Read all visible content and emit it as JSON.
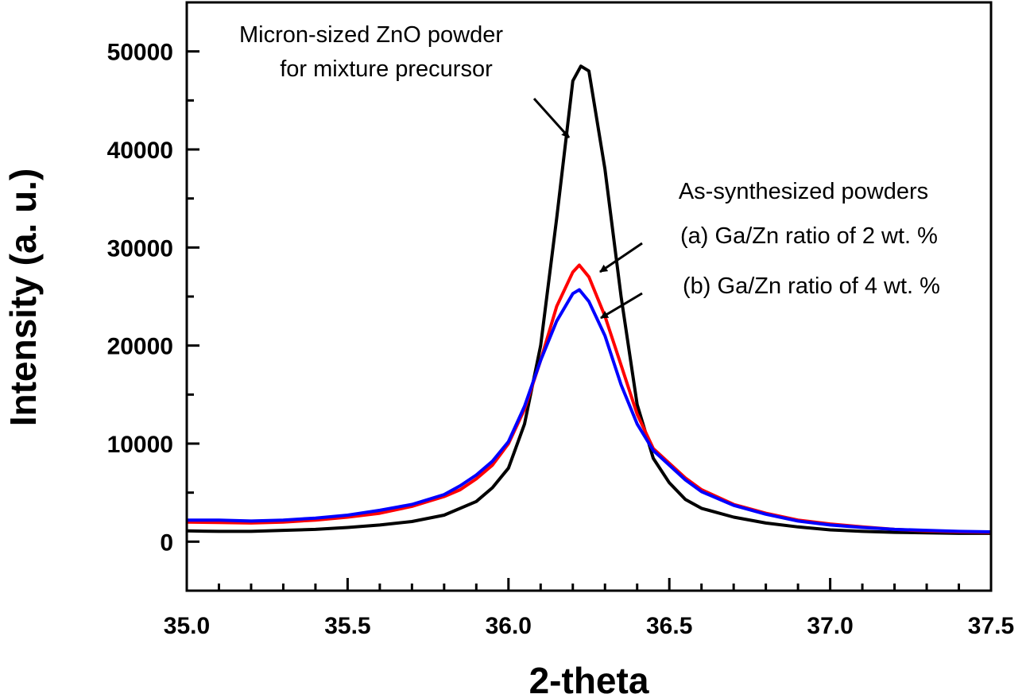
{
  "chart_data": {
    "type": "line",
    "xlabel": "2-theta",
    "ylabel": "Intensity (a. u.)",
    "xlim": [
      35.0,
      37.5
    ],
    "ylim": [
      -5000,
      55000
    ],
    "x_ticks": [
      35.0,
      35.5,
      36.0,
      36.5,
      37.0,
      37.5
    ],
    "x_tick_labels": [
      "35.0",
      "35.5",
      "36.0",
      "36.5",
      "37.0",
      "37.5"
    ],
    "y_ticks": [
      0,
      10000,
      20000,
      30000,
      40000,
      50000
    ],
    "y_tick_labels": [
      "0",
      "10000",
      "20000",
      "30000",
      "40000",
      "50000"
    ],
    "grid": false,
    "series": [
      {
        "color": "#000000",
        "x": [
          35.0,
          35.1,
          35.2,
          35.3,
          35.4,
          35.5,
          35.6,
          35.7,
          35.8,
          35.9,
          35.95,
          36.0,
          36.05,
          36.1,
          36.15,
          36.2,
          36.225,
          36.25,
          36.3,
          36.35,
          36.4,
          36.45,
          36.5,
          36.55,
          36.6,
          36.7,
          36.8,
          36.9,
          37.0,
          37.1,
          37.2,
          37.3,
          37.4,
          37.5
        ],
        "y": [
          1100,
          1050,
          1050,
          1150,
          1250,
          1450,
          1700,
          2050,
          2700,
          4100,
          5500,
          7500,
          12000,
          20000,
          33000,
          47000,
          48500,
          48000,
          38000,
          25000,
          14000,
          8500,
          6000,
          4300,
          3400,
          2500,
          1900,
          1500,
          1200,
          1050,
          950,
          900,
          850,
          850
        ]
      },
      {
        "color": "#ff0000",
        "x": [
          35.0,
          35.1,
          35.2,
          35.3,
          35.4,
          35.5,
          35.6,
          35.7,
          35.8,
          35.85,
          35.9,
          35.95,
          36.0,
          36.05,
          36.1,
          36.15,
          36.2,
          36.22,
          36.25,
          36.3,
          36.35,
          36.4,
          36.45,
          36.5,
          36.55,
          36.6,
          36.7,
          36.8,
          36.9,
          37.0,
          37.1,
          37.2,
          37.3,
          37.4,
          37.5
        ],
        "y": [
          2000,
          1950,
          1900,
          2000,
          2200,
          2500,
          2900,
          3600,
          4600,
          5300,
          6400,
          7800,
          10000,
          13500,
          18500,
          24000,
          27500,
          28200,
          27000,
          23000,
          18000,
          13000,
          9500,
          8000,
          6500,
          5300,
          3800,
          2900,
          2200,
          1800,
          1500,
          1250,
          1100,
          1000,
          950
        ]
      },
      {
        "color": "#0000ff",
        "x": [
          35.0,
          35.1,
          35.2,
          35.3,
          35.4,
          35.5,
          35.6,
          35.7,
          35.8,
          35.85,
          35.9,
          35.95,
          36.0,
          36.05,
          36.1,
          36.15,
          36.2,
          36.22,
          36.25,
          36.3,
          36.35,
          36.4,
          36.45,
          36.5,
          36.55,
          36.6,
          36.7,
          36.8,
          36.9,
          37.0,
          37.1,
          37.2,
          37.3,
          37.4,
          37.5
        ],
        "y": [
          2200,
          2200,
          2100,
          2200,
          2400,
          2700,
          3200,
          3800,
          4800,
          5700,
          6800,
          8200,
          10200,
          13800,
          18500,
          22500,
          25300,
          25700,
          24500,
          21000,
          16000,
          12000,
          9300,
          7800,
          6300,
          5100,
          3700,
          2800,
          2100,
          1700,
          1450,
          1250,
          1150,
          1050,
          1000
        ]
      }
    ],
    "annotations": [
      {
        "text": "Micron-sized ZnO powder"
      },
      {
        "text": "for mixture precursor"
      },
      {
        "text": "As-synthesized powders"
      },
      {
        "text": "(a) Ga/Zn ratio of 2 wt. %"
      },
      {
        "text": "(b) Ga/Zn ratio of 4 wt. %"
      }
    ]
  }
}
